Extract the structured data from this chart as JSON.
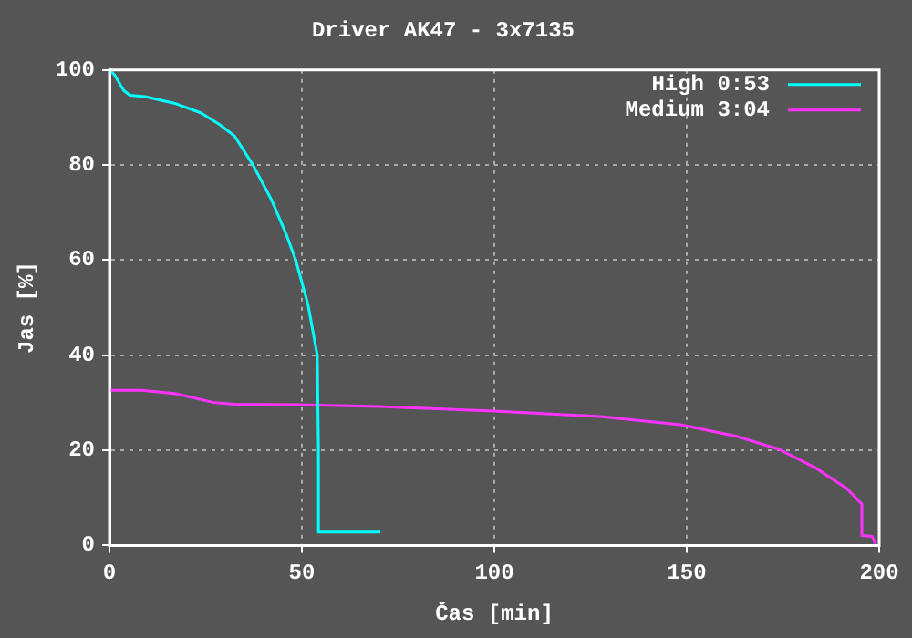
{
  "chart_data": {
    "type": "line",
    "title": "Driver AK47 - 3x7135",
    "xlabel": "Čas [min]",
    "ylabel": "Jas [%]",
    "xlim": [
      0,
      200
    ],
    "xticks": [
      0,
      50,
      100,
      150,
      200
    ],
    "ylim": [
      0,
      100
    ],
    "yticks": [
      0,
      20,
      40,
      60,
      80,
      100
    ],
    "grid": true,
    "legend": "top right",
    "marker": "none",
    "line_style": "solid",
    "series": [
      {
        "name": "High 0:53",
        "color": "#00ffff",
        "x": [
          0,
          1.3,
          3.7,
          5.3,
          9.3,
          17.3,
          23.7,
          28.5,
          32.5,
          37.3,
          42.1,
          46,
          48.4,
          51.6,
          54,
          54.3,
          54.3,
          70.4
        ],
        "values": [
          100,
          99,
          95.7,
          94.7,
          94.4,
          92.9,
          91,
          88.6,
          86.1,
          80,
          72.7,
          65.3,
          60,
          50.6,
          40,
          20,
          2.8,
          2.8
        ]
      },
      {
        "name": "Medium 3:04",
        "color": "#ff33ff",
        "x": [
          0,
          8.5,
          17.3,
          26.9,
          32.5,
          48.4,
          70.2,
          98.8,
          127.6,
          148.4,
          162.7,
          174,
          183.5,
          191.5,
          195.5,
          195.5,
          198.2,
          199
        ],
        "values": [
          32.6,
          32.6,
          31.9,
          30.1,
          29.7,
          29.6,
          29.2,
          28.3,
          27.1,
          25.4,
          23,
          20.2,
          16.3,
          12,
          8.7,
          2.1,
          1.9,
          0.4
        ]
      }
    ]
  }
}
